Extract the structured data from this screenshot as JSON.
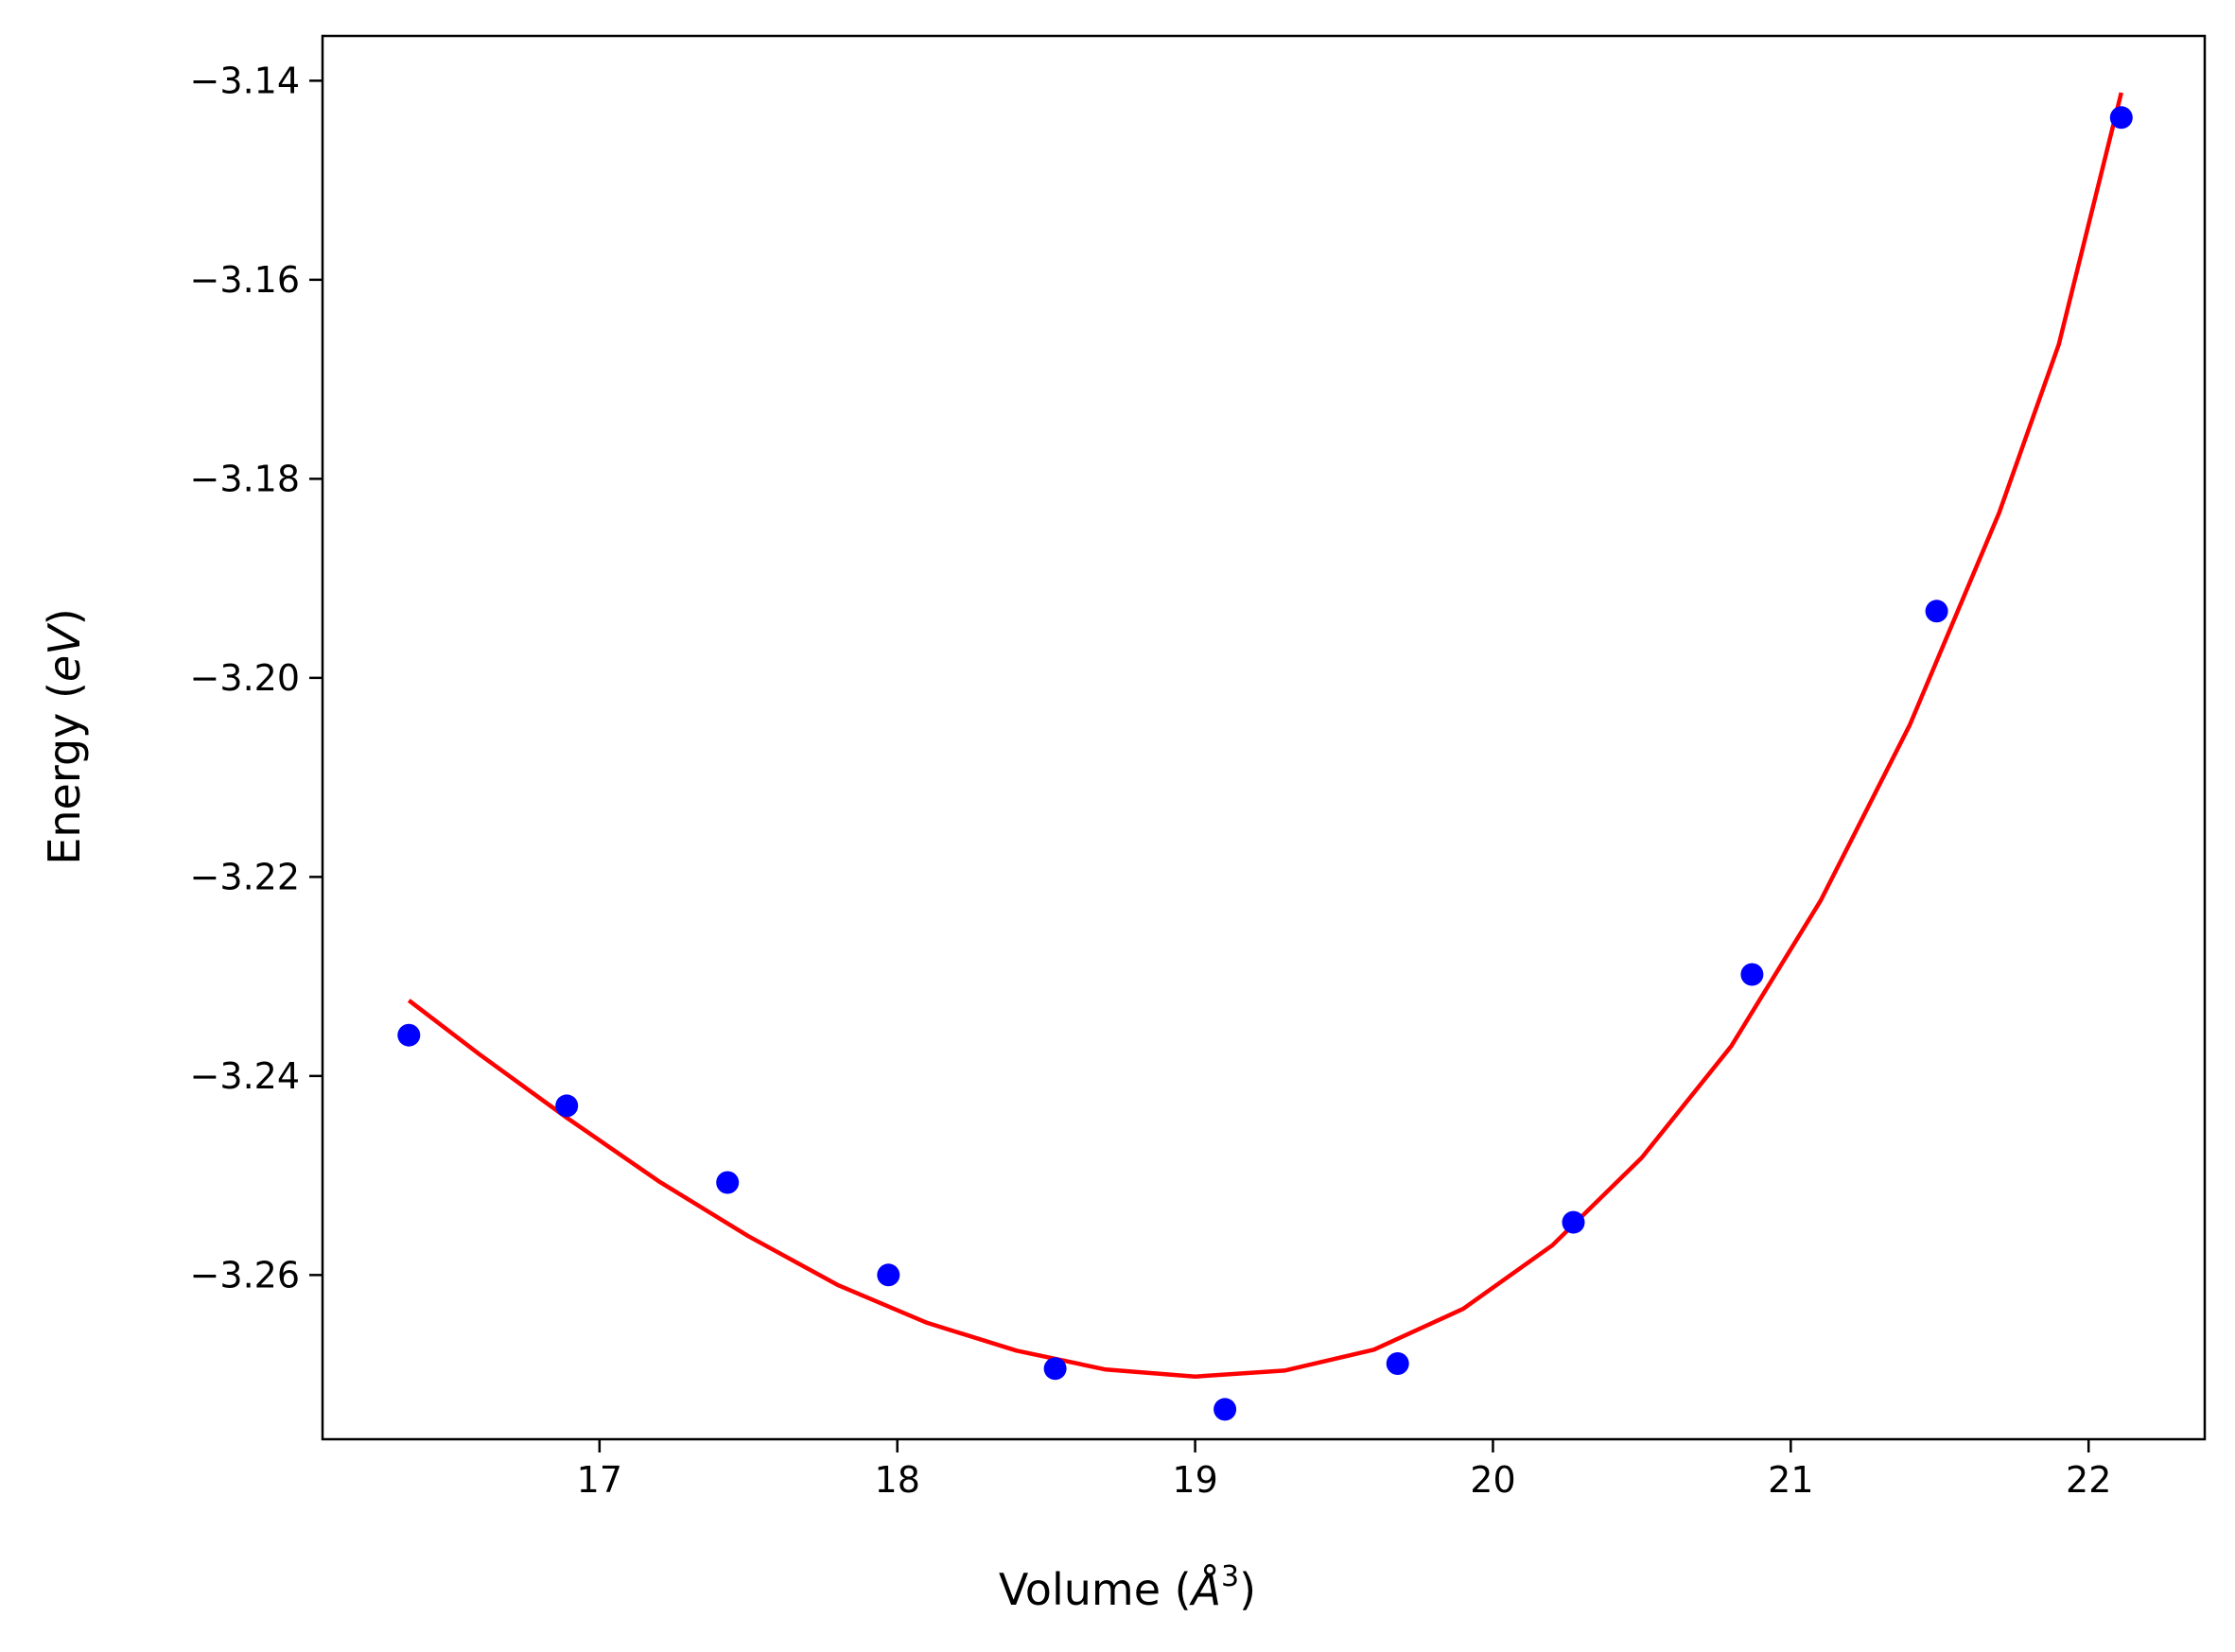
{
  "chart_data": {
    "type": "scatter",
    "title": "",
    "xlabel": "Volume (Å³)",
    "ylabel": "Energy (eV)",
    "xlabel_parts": {
      "prefix": "Volume (",
      "unit": "Å",
      "exponent": "3",
      "suffix": ")"
    },
    "ylabel_parts": {
      "prefix": "Energy (",
      "unit": "eV",
      "suffix": ")"
    },
    "xlim": [
      16.07,
      22.39
    ],
    "ylim": [
      -3.2765,
      -3.1355
    ],
    "grid": false,
    "legend": "none",
    "x_ticks": [
      17,
      18,
      19,
      20,
      21,
      22
    ],
    "x_tick_labels": [
      "17",
      "18",
      "19",
      "20",
      "21",
      "22"
    ],
    "y_ticks": [
      -3.14,
      -3.16,
      -3.18,
      -3.2,
      -3.22,
      -3.24,
      -3.26
    ],
    "y_tick_labels": [
      "−3.14",
      "−3.16",
      "−3.18",
      "−3.20",
      "−3.22",
      "−3.24",
      "−3.26"
    ],
    "series": [
      {
        "kind": "scatter",
        "color": "#0000ff",
        "points": [
          {
            "x": 16.36,
            "y": -3.2359
          },
          {
            "x": 16.89,
            "y": -3.243
          },
          {
            "x": 17.43,
            "y": -3.2507
          },
          {
            "x": 17.97,
            "y": -3.26
          },
          {
            "x": 18.53,
            "y": -3.2694
          },
          {
            "x": 19.1,
            "y": -3.2735
          },
          {
            "x": 19.68,
            "y": -3.2689
          },
          {
            "x": 20.27,
            "y": -3.2547
          },
          {
            "x": 20.87,
            "y": -3.2298
          },
          {
            "x": 21.49,
            "y": -3.1933
          },
          {
            "x": 22.11,
            "y": -3.1437
          }
        ]
      },
      {
        "kind": "line",
        "color": "#ff0000",
        "points": [
          {
            "x": 16.36,
            "y": -3.2324
          },
          {
            "x": 16.6,
            "y": -3.2379
          },
          {
            "x": 16.89,
            "y": -3.2442
          },
          {
            "x": 17.2,
            "y": -3.2506
          },
          {
            "x": 17.5,
            "y": -3.2561
          },
          {
            "x": 17.8,
            "y": -3.261
          },
          {
            "x": 18.1,
            "y": -3.2648
          },
          {
            "x": 18.4,
            "y": -3.2676
          },
          {
            "x": 18.7,
            "y": -3.2695
          },
          {
            "x": 19.0,
            "y": -3.2702
          },
          {
            "x": 19.3,
            "y": -3.2696
          },
          {
            "x": 19.6,
            "y": -3.2675
          },
          {
            "x": 19.9,
            "y": -3.2634
          },
          {
            "x": 20.2,
            "y": -3.257
          },
          {
            "x": 20.5,
            "y": -3.2482
          },
          {
            "x": 20.8,
            "y": -3.237
          },
          {
            "x": 21.1,
            "y": -3.2224
          },
          {
            "x": 21.4,
            "y": -3.2047
          },
          {
            "x": 21.7,
            "y": -3.1834
          },
          {
            "x": 21.9,
            "y": -3.1665
          },
          {
            "x": 22.11,
            "y": -3.1412
          }
        ]
      }
    ]
  }
}
